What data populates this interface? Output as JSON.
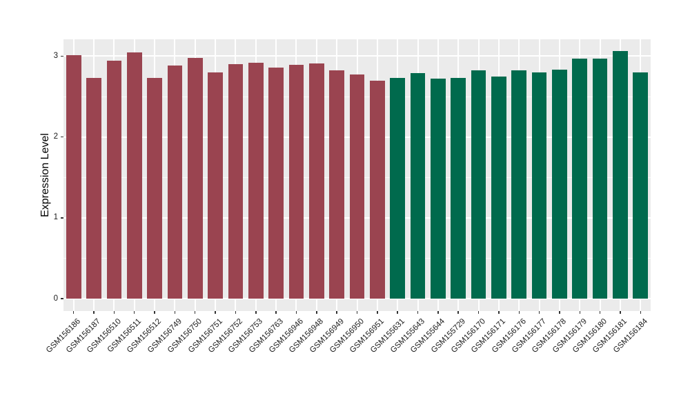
{
  "chart_data": {
    "type": "bar",
    "title": "",
    "xlabel": "",
    "ylabel": "Expression Level",
    "ylim": [
      -0.15,
      3.21
    ],
    "yticks": [
      0,
      1,
      2,
      3
    ],
    "minor_yticks": [
      0.5,
      1.5,
      2.5
    ],
    "grid": "white major and minor horizontal lines plus white vertical lines at category centers on gray panel",
    "legend_position": "none",
    "panel_background": "#EBEBEB",
    "gridline_color": "#FFFFFF",
    "tick_color": "#333333",
    "categories": [
      "GSM156186",
      "GSM156187",
      "GSM156510",
      "GSM156511",
      "GSM156512",
      "GSM156749",
      "GSM156750",
      "GSM156751",
      "GSM156752",
      "GSM156753",
      "GSM156763",
      "GSM156946",
      "GSM156948",
      "GSM156949",
      "GSM156950",
      "GSM156951",
      "GSM155631",
      "GSM155643",
      "GSM155644",
      "GSM155729",
      "GSM156170",
      "GSM156171",
      "GSM156176",
      "GSM156177",
      "GSM156178",
      "GSM156179",
      "GSM156180",
      "GSM156181",
      "GSM156184"
    ],
    "values": [
      3.01,
      2.73,
      2.94,
      3.05,
      2.73,
      2.88,
      2.98,
      2.8,
      2.9,
      2.92,
      2.86,
      2.89,
      2.91,
      2.82,
      2.77,
      2.7,
      2.73,
      2.79,
      2.72,
      2.73,
      2.82,
      2.75,
      2.82,
      2.8,
      2.83,
      2.97,
      2.97,
      3.06,
      2.8
    ],
    "groups": [
      "maroon",
      "maroon",
      "maroon",
      "maroon",
      "maroon",
      "maroon",
      "maroon",
      "maroon",
      "maroon",
      "maroon",
      "maroon",
      "maroon",
      "maroon",
      "maroon",
      "maroon",
      "maroon",
      "green",
      "green",
      "green",
      "green",
      "green",
      "green",
      "green",
      "green",
      "green",
      "green",
      "green",
      "green",
      "green"
    ],
    "group_colors": {
      "maroon": "#9A4450",
      "green": "#006A4D"
    }
  }
}
